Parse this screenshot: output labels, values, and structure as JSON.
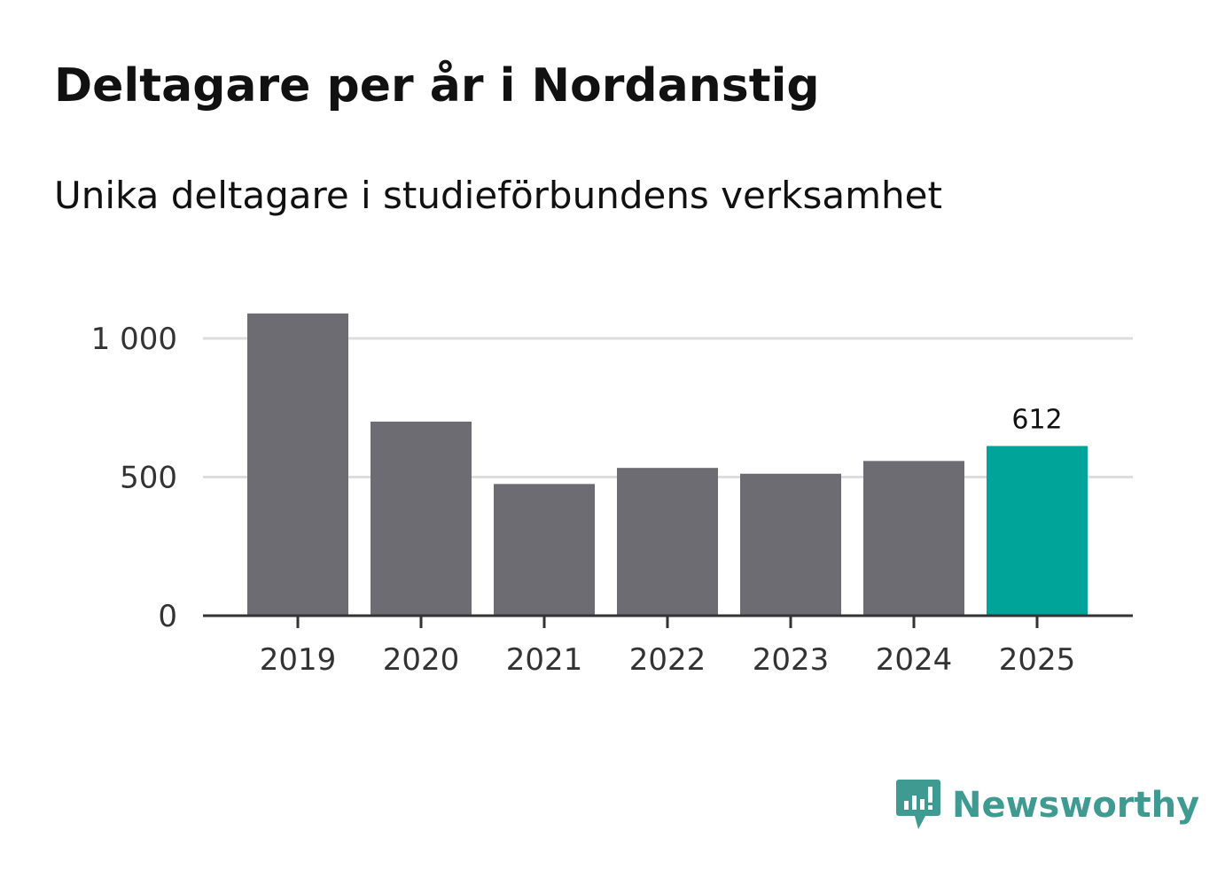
{
  "chart_data": {
    "type": "bar",
    "title": "Deltagare per år i Nordanstig",
    "subtitle": "Unika deltagare i studieförbundens verksamhet",
    "categories": [
      "2019",
      "2020",
      "2021",
      "2022",
      "2023",
      "2024",
      "2025"
    ],
    "values": [
      1090,
      700,
      475,
      533,
      512,
      558,
      612
    ],
    "highlight_index": 6,
    "highlight_label": "612",
    "ylim": [
      0,
      1000
    ],
    "yticks": [
      0,
      500,
      1000
    ],
    "ytick_labels": [
      "0",
      "500",
      "1 000"
    ],
    "xlabel": "",
    "ylabel": "",
    "grid": true,
    "colors": {
      "bar": "#6d6c73",
      "highlight": "#00a499",
      "grid": "#dddddd",
      "axis": "#333333"
    }
  },
  "brand": {
    "name": "Newsworthy",
    "icon": "newsworthy-logo-icon",
    "color": "#3f9a92"
  }
}
